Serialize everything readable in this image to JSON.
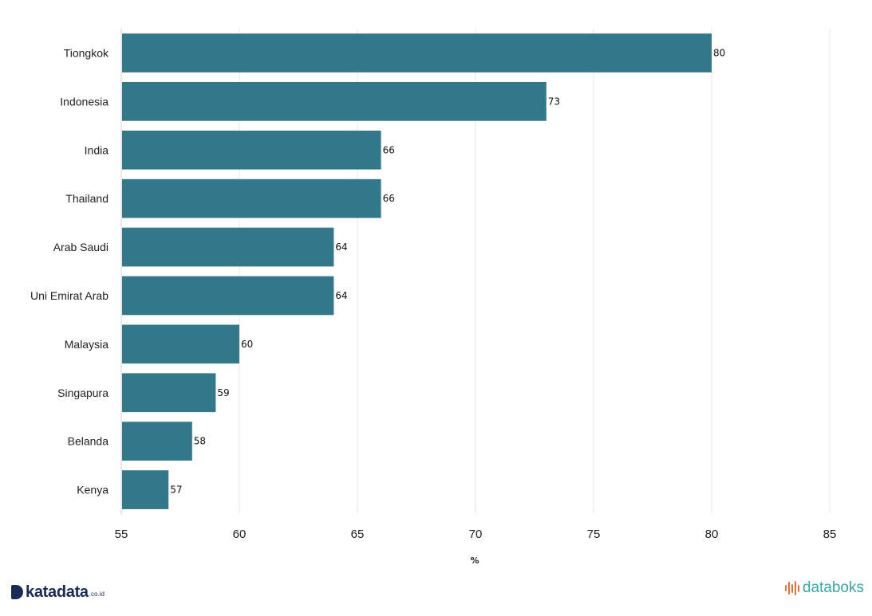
{
  "chart_data": {
    "type": "bar",
    "orientation": "horizontal",
    "categories": [
      "Tiongkok",
      "Indonesia",
      "India",
      "Thailand",
      "Arab Saudi",
      "Uni Emirat Arab",
      "Malaysia",
      "Singapura",
      "Belanda",
      "Kenya"
    ],
    "values": [
      80,
      73,
      66,
      66,
      64,
      64,
      60,
      59,
      58,
      57
    ],
    "xlabel": "%",
    "xlim": [
      55,
      85
    ],
    "xticks": [
      55,
      60,
      65,
      70,
      75,
      80,
      85
    ],
    "grid": true,
    "bar_color": "#33778a"
  },
  "branding": {
    "left_logo": "katadata",
    "left_logo_suffix": ".co.id",
    "right_logo": "databoks"
  }
}
